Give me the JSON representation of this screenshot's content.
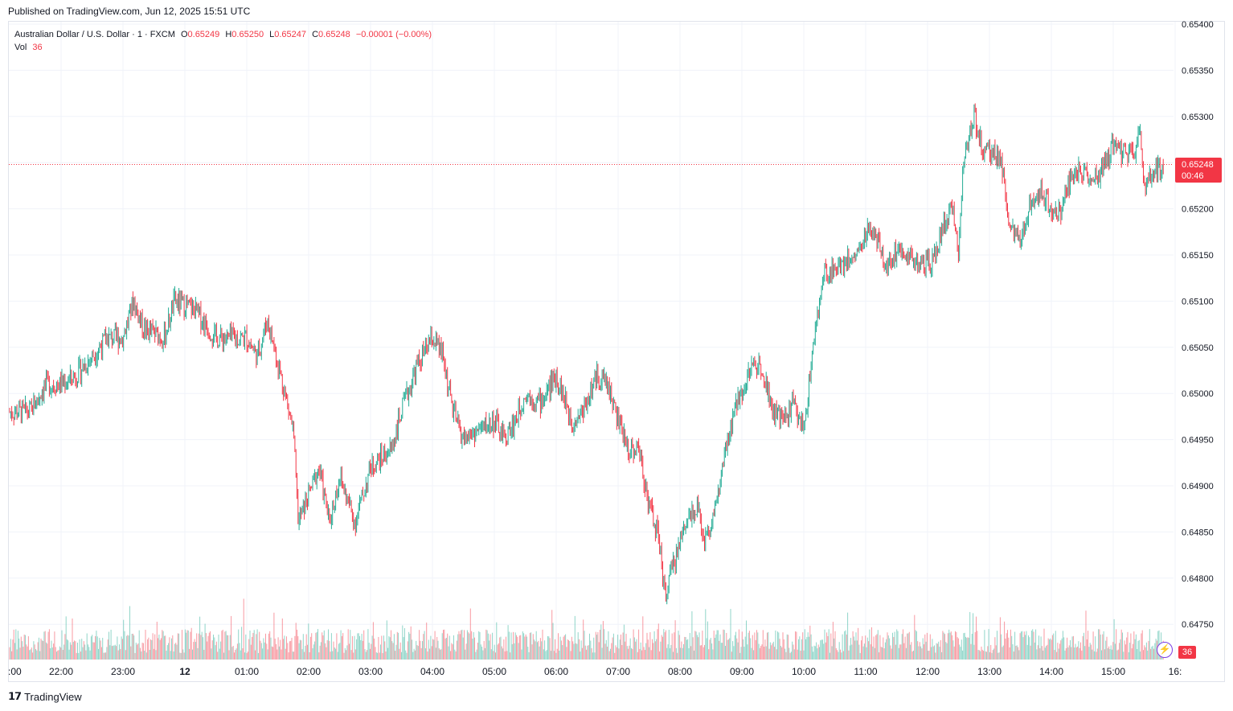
{
  "header": {
    "published": "Published on TradingView.com, Jun 12, 2025 15:51 UTC"
  },
  "legend": {
    "symbol": "Australian Dollar / U.S. Dollar · 1 · FXCM",
    "o_label": "O",
    "o_value": "0.65249",
    "h_label": "H",
    "h_value": "0.65250",
    "l_label": "L",
    "l_value": "0.65247",
    "c_label": "C",
    "c_value": "0.65248",
    "change": "−0.00001 (−0.00%)",
    "vol_label": "Vol",
    "vol_value": "36"
  },
  "price_badge": {
    "price": "0.65248",
    "countdown": "00:46"
  },
  "volume_badge": "36",
  "footer": {
    "brand": "TradingView"
  },
  "colors": {
    "up": "#22ab94",
    "down": "#f23645",
    "grid": "#f0f3fa",
    "text": "#131722"
  },
  "chart_data": {
    "type": "candlestick",
    "y_axis": {
      "ticks": [
        "0.65400",
        "0.65350",
        "0.65300",
        "0.65250",
        "0.65200",
        "0.65150",
        "0.65100",
        "0.65050",
        "0.65000",
        "0.64950",
        "0.64900",
        "0.64850",
        "0.64800",
        "0.64750"
      ],
      "ylim": [
        0.6472,
        0.654
      ]
    },
    "x_axis": {
      "ticks": [
        ":00",
        "22:00",
        "23:00",
        "12",
        "01:00",
        "02:00",
        "03:00",
        "04:00",
        "05:00",
        "06:00",
        "07:00",
        "08:00",
        "09:00",
        "10:00",
        "11:00",
        "12:00",
        "13:00",
        "14:00",
        "15:00",
        "16:"
      ]
    },
    "last_price": 0.65248,
    "close_path": [
      [
        "21:30",
        0.6498
      ],
      [
        "21:45",
        0.6501
      ],
      [
        "22:00",
        0.6501
      ],
      [
        "22:15",
        0.6502
      ],
      [
        "22:30",
        0.6504
      ],
      [
        "22:45",
        0.6506
      ],
      [
        "23:00",
        0.6506
      ],
      [
        "23:10",
        0.651
      ],
      [
        "23:20",
        0.6507
      ],
      [
        "23:40",
        0.6506
      ],
      [
        "23:50",
        0.651
      ],
      [
        "00:10",
        0.6509
      ],
      [
        "00:30",
        0.6506
      ],
      [
        "00:45",
        0.6506
      ],
      [
        "01:00",
        0.6506
      ],
      [
        "01:10",
        0.6504
      ],
      [
        "01:20",
        0.6508
      ],
      [
        "01:35",
        0.6501
      ],
      [
        "01:45",
        0.6496
      ],
      [
        "01:50",
        0.6486
      ],
      [
        "02:00",
        0.6489
      ],
      [
        "02:10",
        0.6492
      ],
      [
        "02:20",
        0.6486
      ],
      [
        "02:30",
        0.6491
      ],
      [
        "02:45",
        0.6486
      ],
      [
        "03:00",
        0.6492
      ],
      [
        "03:20",
        0.6494
      ],
      [
        "03:30",
        0.6498
      ],
      [
        "03:45",
        0.6503
      ],
      [
        "04:00",
        0.6506
      ],
      [
        "04:10",
        0.6504
      ],
      [
        "04:20",
        0.6498
      ],
      [
        "04:30",
        0.6495
      ],
      [
        "04:45",
        0.6496
      ],
      [
        "05:00",
        0.6497
      ],
      [
        "05:10",
        0.6495
      ],
      [
        "05:20",
        0.6497
      ],
      [
        "05:30",
        0.65
      ],
      [
        "05:45",
        0.6499
      ],
      [
        "06:00",
        0.6502
      ],
      [
        "06:15",
        0.6497
      ],
      [
        "06:25",
        0.6498
      ],
      [
        "06:40",
        0.6502
      ],
      [
        "06:50",
        0.6501
      ],
      [
        "07:00",
        0.6497
      ],
      [
        "07:10",
        0.6494
      ],
      [
        "07:20",
        0.6494
      ],
      [
        "07:30",
        0.6488
      ],
      [
        "07:40",
        0.6484
      ],
      [
        "07:45",
        0.6478
      ],
      [
        "07:55",
        0.6482
      ],
      [
        "08:05",
        0.6486
      ],
      [
        "08:15",
        0.6488
      ],
      [
        "08:25",
        0.6484
      ],
      [
        "08:35",
        0.6488
      ],
      [
        "08:45",
        0.6494
      ],
      [
        "08:55",
        0.6499
      ],
      [
        "09:10",
        0.6503
      ],
      [
        "09:20",
        0.6503
      ],
      [
        "09:30",
        0.6498
      ],
      [
        "09:40",
        0.6497
      ],
      [
        "09:50",
        0.6499
      ],
      [
        "10:00",
        0.6496
      ],
      [
        "10:10",
        0.6506
      ],
      [
        "10:20",
        0.6513
      ],
      [
        "10:35",
        0.6514
      ],
      [
        "10:50",
        0.6515
      ],
      [
        "11:05",
        0.6518
      ],
      [
        "11:20",
        0.6514
      ],
      [
        "11:35",
        0.6516
      ],
      [
        "11:50",
        0.6514
      ],
      [
        "12:05",
        0.6514
      ],
      [
        "12:15",
        0.6518
      ],
      [
        "12:25",
        0.652
      ],
      [
        "12:30",
        0.6515
      ],
      [
        "12:35",
        0.6526
      ],
      [
        "12:45",
        0.653
      ],
      [
        "12:55",
        0.6526
      ],
      [
        "13:10",
        0.6526
      ],
      [
        "13:20",
        0.6518
      ],
      [
        "13:30",
        0.6516
      ],
      [
        "13:40",
        0.6521
      ],
      [
        "13:50",
        0.6522
      ],
      [
        "14:00",
        0.652
      ],
      [
        "14:10",
        0.652
      ],
      [
        "14:20",
        0.6524
      ],
      [
        "14:30",
        0.6524
      ],
      [
        "14:45",
        0.6523
      ],
      [
        "15:00",
        0.6527
      ],
      [
        "15:10",
        0.6526
      ],
      [
        "15:20",
        0.6526
      ],
      [
        "15:25",
        0.6529
      ],
      [
        "15:30",
        0.6522
      ],
      [
        "15:40",
        0.6524
      ],
      [
        "15:51",
        0.65248
      ]
    ],
    "volume": {
      "last": 36
    }
  }
}
